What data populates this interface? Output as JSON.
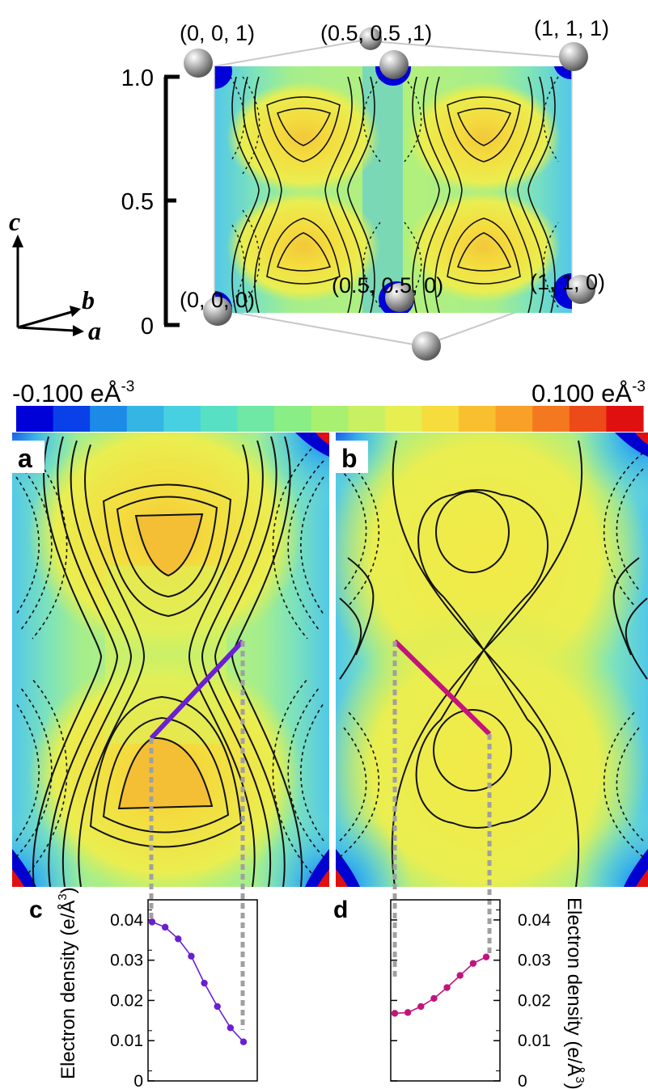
{
  "unit_cell": {
    "corners": {
      "c001": "(0, 0, 1)",
      "c05051": "(0.5, 0.5 ,1)",
      "c111": "(1, 1, 1)",
      "c000": "(0, 0, 0)",
      "c05050": "(0.5, 0.5, 0)",
      "c110": "(1, 1, 0)"
    },
    "c_axis_ticks": [
      "1.0",
      "0.5",
      "0"
    ],
    "axes": {
      "c": "c",
      "b": "b",
      "a": "a"
    }
  },
  "colorbar": {
    "min_label": "-0.100 e",
    "max_label": "0.100 e",
    "unit_symbol": "Å",
    "unit_exp": "-3",
    "colors": [
      "#0000d8",
      "#0a40e8",
      "#1c8ae6",
      "#35b5e4",
      "#47d0e0",
      "#58e0c4",
      "#6ee8a4",
      "#8aee86",
      "#a8f070",
      "#c8f062",
      "#e6ee50",
      "#f6dc3c",
      "#f8c030",
      "#f8a028",
      "#f47820",
      "#ec4a18",
      "#e01010"
    ]
  },
  "panels": {
    "a": {
      "label": "a",
      "line_color": "#6a1fd1"
    },
    "b": {
      "label": "b",
      "line_color": "#c2147c"
    }
  },
  "chart_data": [
    {
      "type": "line",
      "panel": "c",
      "panel_label": "c",
      "ylabel": "Electron density (e/Å",
      "ylabel_exp": "3",
      "ylabel_close": ")",
      "ylim": [
        0,
        0.045
      ],
      "yticks": [
        "0",
        "0.01",
        "0.02",
        "0.03",
        "0.04"
      ],
      "ytick_values": [
        0,
        0.01,
        0.02,
        0.03,
        0.04
      ],
      "axis_side": "left",
      "color": "#6a1fd1",
      "x": [
        0,
        1,
        2,
        3,
        4,
        5,
        6,
        7
      ],
      "y": [
        0.0395,
        0.0382,
        0.0353,
        0.031,
        0.0243,
        0.0185,
        0.0132,
        0.0097
      ]
    },
    {
      "type": "line",
      "panel": "d",
      "panel_label": "d",
      "ylabel": "Electron density (e/Å",
      "ylabel_exp": "3",
      "ylabel_close": ")",
      "ylim": [
        0,
        0.045
      ],
      "yticks": [
        "0",
        "0.01",
        "0.02",
        "0.03",
        "0.04"
      ],
      "ytick_values": [
        0,
        0.01,
        0.02,
        0.03,
        0.04
      ],
      "axis_side": "right",
      "color": "#c2147c",
      "x": [
        0,
        1,
        2,
        3,
        4,
        5,
        6,
        7
      ],
      "y": [
        0.0168,
        0.017,
        0.0185,
        0.0205,
        0.0232,
        0.0262,
        0.0292,
        0.0308
      ]
    }
  ]
}
